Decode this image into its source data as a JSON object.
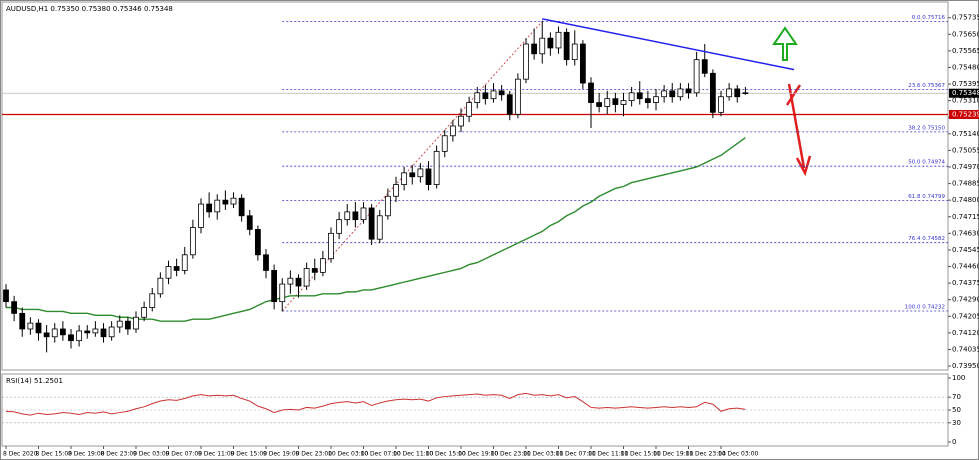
{
  "chart_data": [
    {
      "type": "candlestick",
      "title": "AUDUSD,H1 0.75350 0.75380 0.75346 0.75348",
      "categories": [
        "8 Dec 2020",
        null,
        null,
        null,
        "8 Dec 15:00",
        null,
        null,
        null,
        "8 Dec 19:00",
        null,
        null,
        null,
        "8 Dec 23:00",
        null,
        null,
        null,
        "9 Dec 03:00",
        null,
        null,
        null,
        "9 Dec 07:00",
        null,
        null,
        null,
        "9 Dec 11:00",
        null,
        null,
        null,
        "9 Dec 15:00",
        null,
        null,
        null,
        "9 Dec 19:00",
        null,
        null,
        null,
        "9 Dec 23:00",
        null,
        null,
        null,
        "10 Dec 03:00",
        null,
        null,
        null,
        "10 Dec 07:00",
        null,
        null,
        null,
        "10 Dec 11:00",
        null,
        null,
        null,
        "10 Dec 15:00",
        null,
        null,
        null,
        "10 Dec 19:00",
        null,
        null,
        null,
        "10 Dec 23:00",
        null,
        null,
        null,
        "11 Dec 03:00",
        null,
        null,
        null,
        "11 Dec 07:00",
        null,
        null,
        null,
        "11 Dec 11:00",
        null,
        null,
        null,
        "11 Dec 15:00",
        null,
        null,
        null,
        "11 Dec 19:00",
        null,
        null,
        null,
        "11 Dec 23:00",
        null,
        null,
        null,
        "14 Dec 03:00",
        null,
        null,
        null
      ],
      "open": [
        0.7434,
        0.7428,
        0.7422,
        0.7414,
        0.7417,
        0.7412,
        0.741,
        0.7414,
        0.7411,
        0.7408,
        0.7413,
        0.7412,
        0.7414,
        0.741,
        0.7415,
        0.7418,
        0.7414,
        0.742,
        0.7425,
        0.7432,
        0.744,
        0.7446,
        0.7444,
        0.7452,
        0.7466,
        0.7478,
        0.7474,
        0.748,
        0.7478,
        0.7481,
        0.7472,
        0.7465,
        0.7452,
        0.7444,
        0.7428,
        0.7437,
        0.744,
        0.7436,
        0.7445,
        0.7443,
        0.745,
        0.7463,
        0.747,
        0.7474,
        0.747,
        0.7476,
        0.746,
        0.7472,
        0.7482,
        0.7488,
        0.7494,
        0.7492,
        0.7496,
        0.7488,
        0.7505,
        0.7513,
        0.7518,
        0.7523,
        0.753,
        0.7535,
        0.7532,
        0.7536,
        0.7534,
        0.7524,
        0.7542,
        0.756,
        0.7555,
        0.7563,
        0.7558,
        0.7566,
        0.7552,
        0.756,
        0.754,
        0.753,
        0.7528,
        0.7532,
        0.7529,
        0.7531,
        0.7535,
        0.7532,
        0.753,
        0.7533,
        0.7536,
        0.7533,
        0.7537,
        0.7535,
        0.7552,
        0.7545,
        0.7525,
        0.7533,
        0.7537,
        0.7535
      ],
      "high": [
        0.7437,
        0.7431,
        0.7425,
        0.742,
        0.7419,
        0.7416,
        0.7417,
        0.7418,
        0.7414,
        0.7416,
        0.7416,
        0.7418,
        0.7417,
        0.7418,
        0.7421,
        0.742,
        0.7423,
        0.7428,
        0.7435,
        0.7443,
        0.7449,
        0.745,
        0.7456,
        0.747,
        0.7481,
        0.7484,
        0.7483,
        0.7485,
        0.7484,
        0.7483,
        0.7475,
        0.7467,
        0.7455,
        0.7447,
        0.744,
        0.7444,
        0.7442,
        0.7448,
        0.745,
        0.7454,
        0.7466,
        0.7474,
        0.7478,
        0.7479,
        0.7479,
        0.7478,
        0.7475,
        0.7486,
        0.7492,
        0.7497,
        0.7498,
        0.7499,
        0.75,
        0.7508,
        0.7516,
        0.7521,
        0.7527,
        0.7533,
        0.7538,
        0.7539,
        0.754,
        0.7539,
        0.7536,
        0.7545,
        0.7563,
        0.7568,
        0.7572,
        0.7566,
        0.7569,
        0.7568,
        0.7567,
        0.7562,
        0.7543,
        0.7535,
        0.7536,
        0.7535,
        0.7535,
        0.7538,
        0.7541,
        0.7536,
        0.7537,
        0.7539,
        0.754,
        0.754,
        0.754,
        0.7556,
        0.756,
        0.7547,
        0.7536,
        0.754,
        0.7539,
        0.7538
      ],
      "low": [
        0.7425,
        0.7418,
        0.741,
        0.7411,
        0.7408,
        0.7402,
        0.7407,
        0.7408,
        0.7404,
        0.7405,
        0.7409,
        0.741,
        0.7407,
        0.7408,
        0.7412,
        0.7411,
        0.7412,
        0.7418,
        0.7423,
        0.743,
        0.7437,
        0.7441,
        0.7442,
        0.745,
        0.7463,
        0.7471,
        0.747,
        0.7475,
        0.7476,
        0.7469,
        0.7462,
        0.7449,
        0.744,
        0.7424,
        0.7423,
        0.7432,
        0.743,
        0.7434,
        0.7439,
        0.7441,
        0.7448,
        0.746,
        0.7467,
        0.7466,
        0.7468,
        0.7457,
        0.7458,
        0.747,
        0.7479,
        0.7485,
        0.7488,
        0.7489,
        0.7485,
        0.7486,
        0.7502,
        0.751,
        0.7515,
        0.752,
        0.7527,
        0.7529,
        0.753,
        0.7531,
        0.7521,
        0.7522,
        0.754,
        0.7552,
        0.755,
        0.7554,
        0.7555,
        0.7549,
        0.7549,
        0.7537,
        0.7517,
        0.7525,
        0.7524,
        0.7525,
        0.7523,
        0.7528,
        0.7529,
        0.7527,
        0.7526,
        0.753,
        0.753,
        0.7531,
        0.7532,
        0.7533,
        0.7543,
        0.7522,
        0.7523,
        0.7531,
        0.753,
        0.7534
      ],
      "close": [
        0.7428,
        0.7422,
        0.7414,
        0.7417,
        0.7412,
        0.741,
        0.7414,
        0.7411,
        0.7408,
        0.7413,
        0.7412,
        0.7414,
        0.741,
        0.7415,
        0.7418,
        0.7414,
        0.742,
        0.7425,
        0.7432,
        0.744,
        0.7446,
        0.7444,
        0.7452,
        0.7466,
        0.7478,
        0.7474,
        0.748,
        0.7478,
        0.7481,
        0.7472,
        0.7465,
        0.7452,
        0.7444,
        0.7428,
        0.7437,
        0.744,
        0.7436,
        0.7445,
        0.7443,
        0.745,
        0.7463,
        0.747,
        0.7474,
        0.747,
        0.7476,
        0.746,
        0.7472,
        0.7482,
        0.7488,
        0.7494,
        0.7492,
        0.7496,
        0.7488,
        0.7505,
        0.7513,
        0.7518,
        0.7523,
        0.753,
        0.7535,
        0.7532,
        0.7536,
        0.7534,
        0.7524,
        0.7542,
        0.756,
        0.7555,
        0.7563,
        0.7558,
        0.7566,
        0.7552,
        0.756,
        0.754,
        0.753,
        0.7528,
        0.7532,
        0.7529,
        0.7531,
        0.7535,
        0.7532,
        0.753,
        0.7533,
        0.7536,
        0.7533,
        0.7537,
        0.7535,
        0.7552,
        0.7545,
        0.7525,
        0.7533,
        0.7537,
        0.7533,
        0.75348
      ],
      "up_color": "#ffffff",
      "down_color": "#000000",
      "moving_average": {
        "color": "#2e8b2e",
        "values": [
          0.7425,
          0.7425,
          0.7424,
          0.7424,
          0.7424,
          0.7423,
          0.7423,
          0.7423,
          0.7422,
          0.7422,
          0.7422,
          0.7421,
          0.7421,
          0.7421,
          0.742,
          0.742,
          0.7419,
          0.7419,
          0.7419,
          0.7418,
          0.7418,
          0.7418,
          0.7418,
          0.7419,
          0.7419,
          0.7419,
          0.742,
          0.7421,
          0.7422,
          0.7423,
          0.7424,
          0.7426,
          0.7428,
          0.7429,
          0.743,
          0.7431,
          0.7431,
          0.7431,
          0.7431,
          0.7432,
          0.7432,
          0.7432,
          0.7433,
          0.7433,
          0.7434,
          0.7434,
          0.7435,
          0.7436,
          0.7437,
          0.7438,
          0.7439,
          0.744,
          0.7441,
          0.7442,
          0.7443,
          0.7444,
          0.7445,
          0.7447,
          0.7448,
          0.745,
          0.7452,
          0.7454,
          0.7456,
          0.7458,
          0.746,
          0.7462,
          0.7464,
          0.7467,
          0.7469,
          0.7472,
          0.7474,
          0.7477,
          0.7479,
          0.7482,
          0.7484,
          0.7486,
          0.7487,
          0.7489,
          0.749,
          0.7491,
          0.7492,
          0.7493,
          0.7494,
          0.7495,
          0.7496,
          0.7497,
          0.7499,
          0.7501,
          0.7503,
          0.7506,
          0.7509,
          0.7512
        ]
      },
      "ylim": [
        0.7394,
        0.758
      ],
      "yticks": [
        0.75735,
        {
          "value": 0.7565,
          "label": "0.75650"
        },
        0.75565,
        {
          "value": 0.7548,
          "label": "0.75480"
        },
        0.75395,
        {
          "value": 0.7531,
          "label": "0.75310"
        },
        0.75225,
        {
          "value": 0.7514,
          "label": "0.75140"
        },
        0.75055,
        {
          "value": 0.7497,
          "label": "0.74970"
        },
        0.74885,
        {
          "value": 0.748,
          "label": "0.74800"
        },
        0.74715,
        {
          "value": 0.7463,
          "label": "0.74630"
        },
        0.74545,
        {
          "value": 0.7446,
          "label": "0.74460"
        },
        0.74375,
        {
          "value": 0.7429,
          "label": "0.74290"
        },
        0.74205,
        {
          "value": 0.7412,
          "label": "0.74120"
        },
        0.74035,
        {
          "value": 0.7395,
          "label": "0.73950"
        }
      ],
      "fib": {
        "color": "#3333cc",
        "diagonal_color": "#d05050",
        "x": [
          34,
          66
        ],
        "levels": [
          {
            "label": "0.0 0.75716",
            "value": 0.75716
          },
          {
            "label": "23.6 0.75367",
            "value": 0.75367
          },
          {
            "label": "38.2 0.75150",
            "value": 0.7515
          },
          {
            "label": "50.0 0.74974",
            "value": 0.74974
          },
          {
            "label": "61.8 0.74799",
            "value": 0.74799
          },
          {
            "label": "76.4 0.74582",
            "value": 0.74582
          },
          {
            "label": "100.0 0.74232",
            "value": 0.74232
          }
        ]
      },
      "trendline": {
        "color": "#2222ee",
        "x": [
          66,
          97
        ],
        "y": [
          0.75729,
          0.75469
        ]
      },
      "support_line": {
        "value": 0.75239,
        "label": "0.75239",
        "color": "#cc0000"
      },
      "current_price": {
        "value": 0.75348,
        "label": "0.75348"
      }
    },
    {
      "type": "line",
      "title": "RSI(14) 51.2501",
      "color": "#cc3333",
      "values": [
        48,
        47,
        44,
        42,
        45,
        43,
        44,
        46,
        45,
        43,
        46,
        45,
        47,
        44,
        46,
        48,
        52,
        55,
        60,
        64,
        66,
        65,
        68,
        72,
        74,
        72,
        73,
        72,
        73,
        68,
        64,
        56,
        52,
        46,
        50,
        51,
        50,
        54,
        53,
        56,
        60,
        62,
        63,
        61,
        63,
        57,
        61,
        64,
        66,
        67,
        66,
        67,
        64,
        69,
        71,
        72,
        73,
        74,
        75,
        73,
        74,
        73,
        68,
        74,
        76,
        73,
        74,
        72,
        74,
        69,
        71,
        63,
        54,
        53,
        54,
        53,
        54,
        55,
        54,
        53,
        54,
        55,
        54,
        55,
        54,
        55,
        62,
        59,
        48,
        52,
        53,
        51
      ],
      "ylim": [
        0,
        100
      ],
      "yticks": [
        100,
        70,
        50,
        30,
        0
      ]
    }
  ]
}
